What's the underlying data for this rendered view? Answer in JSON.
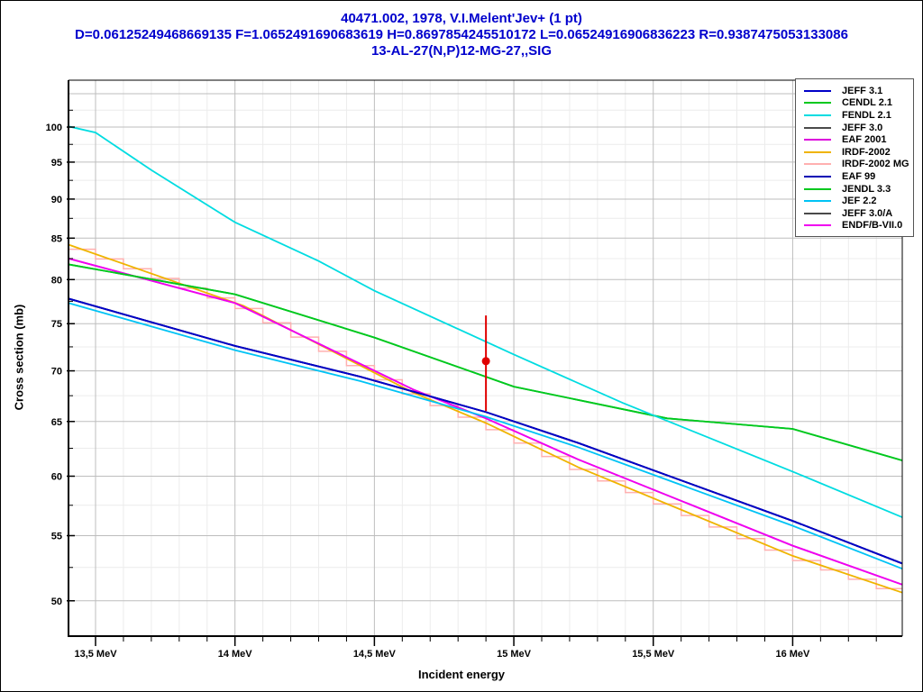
{
  "window": {
    "background": "#ffffff",
    "border_color": "#000000"
  },
  "title": {
    "line1": "40471.002, 1978, V.I.Melent'Jev+ (1 pt)",
    "line2": "D=0.06125249468669135 F=1.0652491690683619 H=0.8697854245510172 L=0.06524916906836223 R=0.9387475053133086",
    "line3": "13-AL-27(N,P)12-MG-27,,SIG",
    "color": "#0000cd"
  },
  "axes": {
    "x_label": "Incident energy",
    "y_label": "Cross section (mb)",
    "x_ticks": [
      {
        "value": 13.5,
        "label": "13,5 MeV"
      },
      {
        "value": 14.0,
        "label": "14 MeV"
      },
      {
        "value": 14.5,
        "label": "14,5 MeV"
      },
      {
        "value": 15.0,
        "label": "15 MeV"
      },
      {
        "value": 15.5,
        "label": "15,5 MeV"
      },
      {
        "value": 16.0,
        "label": "16 MeV"
      }
    ],
    "y_ticks": [
      {
        "value": 50,
        "label": "50"
      },
      {
        "value": 55,
        "label": "55"
      },
      {
        "value": 60,
        "label": "60"
      },
      {
        "value": 65,
        "label": "65"
      },
      {
        "value": 70,
        "label": "70"
      },
      {
        "value": 75,
        "label": "75"
      },
      {
        "value": 80,
        "label": "80"
      },
      {
        "value": 85,
        "label": "85"
      },
      {
        "value": 90,
        "label": "90"
      },
      {
        "value": 95,
        "label": "95"
      },
      {
        "value": 100,
        "label": "100"
      }
    ],
    "axis_color": "#000000",
    "grid_major_color": "#bdbdbd",
    "grid_minor_color": "#ececec"
  },
  "legend": {
    "items": [
      {
        "label": "JEFF 3.1",
        "color": "#0000c8"
      },
      {
        "label": "CENDL 2.1",
        "color": "#00c81e"
      },
      {
        "label": "FENDL 2.1",
        "color": "#00dce1"
      },
      {
        "label": "JEFF 3.0",
        "color": "#4a4a4a"
      },
      {
        "label": "EAF 2001",
        "color": "#dc00dc"
      },
      {
        "label": "IRDF-2002",
        "color": "#efb400"
      },
      {
        "label": "IRDF-2002 MG",
        "color": "#ffb0b0"
      },
      {
        "label": "EAF 99",
        "color": "#0000b4"
      },
      {
        "label": "JENDL 3.3",
        "color": "#00c81e"
      },
      {
        "label": "JEF 2.2",
        "color": "#00c3f5"
      },
      {
        "label": "JEFF 3.0/A",
        "color": "#4a4a4a"
      },
      {
        "label": "ENDF/B-VII.0",
        "color": "#f000f0"
      }
    ]
  },
  "chart_data": {
    "type": "line",
    "title": "40471.002, 1978, V.I.Melent'Jev+ (1 pt)",
    "xlabel": "Incident energy",
    "ylabel": "Cross section (mb)",
    "x_axis": {
      "unit": "MeV",
      "scale": "linear",
      "range": [
        13.403,
        16.393
      ],
      "tick_values": [
        13.5,
        14.0,
        14.5,
        15.0,
        15.5,
        16.0
      ],
      "minor_step": 0.1
    },
    "y_axis": {
      "unit": "mb",
      "scale": "log",
      "range": [
        47.48,
        107.1
      ],
      "tick_values": [
        50,
        55,
        60,
        65,
        70,
        75,
        80,
        85,
        90,
        95,
        100
      ],
      "minor_step": 2.5
    },
    "grid": true,
    "legend_position": "top-right",
    "series": [
      {
        "name": "IRDF-2002 MG",
        "color": "#ffb0b0",
        "style": "histogram",
        "bin_width": 0.1,
        "points": [
          [
            13.403,
            84.2
          ],
          [
            14.03,
            77.0
          ],
          [
            14.64,
            67.8
          ],
          [
            14.9,
            64.85
          ],
          [
            15.23,
            60.8
          ],
          [
            16.0,
            53.4
          ],
          [
            16.393,
            50.6
          ]
        ]
      },
      {
        "name": "IRDF-2002",
        "color": "#efb400",
        "style": "line",
        "points": [
          [
            13.403,
            84.2
          ],
          [
            14.03,
            77.0
          ],
          [
            14.64,
            67.8
          ],
          [
            14.9,
            64.85
          ],
          [
            15.23,
            60.8
          ],
          [
            16.0,
            53.4
          ],
          [
            16.393,
            50.6
          ]
        ]
      },
      {
        "name": "JEFF 3.0",
        "color": "#4a4a4a",
        "style": "line",
        "points": [
          [
            13.403,
            77.8
          ],
          [
            14.0,
            72.6
          ],
          [
            14.45,
            69.4
          ],
          [
            14.9,
            65.9
          ],
          [
            15.23,
            63.0
          ],
          [
            16.0,
            56.2
          ],
          [
            16.393,
            52.8
          ]
        ]
      },
      {
        "name": "JEFF 3.0/A",
        "color": "#4a4a4a",
        "style": "line",
        "points": [
          [
            13.403,
            77.8
          ],
          [
            14.0,
            72.6
          ],
          [
            14.45,
            69.4
          ],
          [
            14.9,
            65.9
          ],
          [
            15.23,
            63.0
          ],
          [
            16.0,
            56.2
          ],
          [
            16.393,
            52.8
          ]
        ]
      },
      {
        "name": "EAF 2001",
        "color": "#dc00dc",
        "style": "line",
        "points": [
          [
            13.403,
            82.5
          ],
          [
            14.0,
            77.3
          ],
          [
            14.64,
            68.1
          ],
          [
            14.9,
            65.3
          ],
          [
            15.23,
            61.5
          ],
          [
            16.0,
            54.2
          ],
          [
            16.393,
            51.2
          ]
        ]
      },
      {
        "name": "ENDF/B-VII.0",
        "color": "#f000f0",
        "style": "line",
        "points": [
          [
            13.403,
            82.5
          ],
          [
            14.0,
            77.3
          ],
          [
            14.64,
            68.1
          ],
          [
            14.9,
            65.3
          ],
          [
            15.23,
            61.5
          ],
          [
            16.0,
            54.2
          ],
          [
            16.393,
            51.2
          ]
        ]
      },
      {
        "name": "JENDL 3.3",
        "color": "#00c81e",
        "style": "line",
        "points": [
          [
            13.403,
            81.8
          ],
          [
            14.0,
            78.3
          ],
          [
            14.5,
            73.5
          ],
          [
            15.0,
            68.4
          ],
          [
            15.55,
            65.3
          ],
          [
            16.0,
            64.3
          ],
          [
            16.393,
            61.4
          ]
        ]
      },
      {
        "name": "CENDL 2.1",
        "color": "#00c81e",
        "style": "line",
        "points": [
          [
            13.403,
            81.8
          ],
          [
            14.0,
            78.3
          ],
          [
            14.5,
            73.5
          ],
          [
            15.0,
            68.4
          ],
          [
            15.55,
            65.3
          ],
          [
            16.0,
            64.3
          ],
          [
            16.393,
            61.4
          ]
        ]
      },
      {
        "name": "JEF 2.2",
        "color": "#00c3f5",
        "style": "line",
        "points": [
          [
            13.403,
            77.3
          ],
          [
            14.0,
            72.15
          ],
          [
            14.45,
            68.95
          ],
          [
            14.9,
            65.45
          ],
          [
            15.23,
            62.6
          ],
          [
            16.0,
            55.8
          ],
          [
            16.393,
            52.4
          ]
        ]
      },
      {
        "name": "EAF 99",
        "color": "#0000b4",
        "style": "line",
        "points": [
          [
            13.403,
            77.8
          ],
          [
            14.0,
            72.6
          ],
          [
            14.45,
            69.4
          ],
          [
            14.9,
            65.9
          ],
          [
            15.23,
            63.0
          ],
          [
            16.0,
            56.2
          ],
          [
            16.393,
            52.8
          ]
        ]
      },
      {
        "name": "JEFF 3.1",
        "color": "#0000c8",
        "style": "line",
        "points": [
          [
            13.403,
            77.8
          ],
          [
            14.0,
            72.6
          ],
          [
            14.45,
            69.4
          ],
          [
            14.9,
            65.9
          ],
          [
            15.23,
            63.0
          ],
          [
            16.0,
            56.2
          ],
          [
            16.393,
            52.8
          ]
        ]
      },
      {
        "name": "FENDL 2.1",
        "color": "#00dce1",
        "style": "line",
        "points": [
          [
            13.403,
            100.1
          ],
          [
            13.5,
            99.2
          ],
          [
            13.7,
            93.9
          ],
          [
            14.0,
            87.0
          ],
          [
            14.3,
            82.2
          ],
          [
            14.5,
            78.7
          ],
          [
            15.0,
            71.7
          ],
          [
            15.39,
            66.8
          ],
          [
            16.0,
            60.4
          ],
          [
            16.393,
            56.5
          ]
        ]
      }
    ],
    "experimental_point": {
      "x": 14.9,
      "y": 71.0,
      "y_err_low": 66.0,
      "y_err_high": 75.9,
      "color": "#e00000",
      "marker": "circle"
    }
  }
}
